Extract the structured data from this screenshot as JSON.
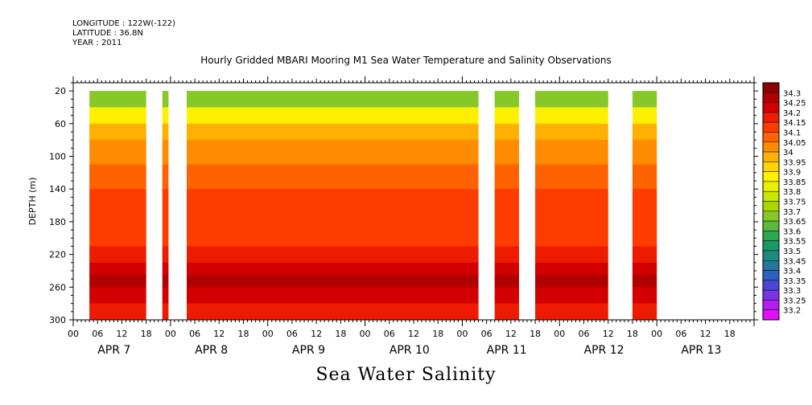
{
  "header": {
    "longitude": "LONGITUDE : 122W(-122)",
    "latitude": "LATITUDE : 36.8N",
    "year": "YEAR : 2011"
  },
  "chart_data": {
    "type": "heatmap",
    "title": "Hourly Gridded MBARI Mooring M1 Sea Water Temperature and Salinity Observations",
    "caption": "Sea Water Salinity",
    "ylabel": "DEPTH (m)",
    "y_reversed": true,
    "ylim": [
      300,
      10
    ],
    "yticks": [
      20,
      60,
      100,
      140,
      180,
      220,
      260,
      300
    ],
    "xlim_hours": [
      0,
      168
    ],
    "hour_ticks": [
      "00",
      "06",
      "12",
      "18",
      "00",
      "06",
      "12",
      "18",
      "00",
      "06",
      "12",
      "18",
      "00",
      "06",
      "12",
      "18",
      "00",
      "06",
      "12",
      "18",
      "00",
      "06",
      "12",
      "18",
      "00",
      "06",
      "12",
      "18"
    ],
    "day_labels": [
      "APR  7",
      "APR  8",
      "APR  9",
      "APR 10",
      "APR 11",
      "APR 12",
      "APR 13"
    ],
    "data_segments_hours": [
      [
        4,
        18
      ],
      [
        22,
        23.5
      ],
      [
        28,
        100
      ],
      [
        104,
        110
      ],
      [
        114,
        132
      ],
      [
        138,
        144
      ]
    ],
    "depth_layers": [
      {
        "depth": [
          20,
          40
        ],
        "salinity": 33.65
      },
      {
        "depth": [
          40,
          60
        ],
        "salinity": 33.85
      },
      {
        "depth": [
          60,
          80
        ],
        "salinity": 33.95
      },
      {
        "depth": [
          80,
          110
        ],
        "salinity": 34.0
      },
      {
        "depth": [
          110,
          140
        ],
        "salinity": 34.05
      },
      {
        "depth": [
          140,
          210
        ],
        "salinity": 34.1
      },
      {
        "depth": [
          210,
          230
        ],
        "salinity": 34.15
      },
      {
        "depth": [
          230,
          245
        ],
        "salinity": 34.2
      },
      {
        "depth": [
          245,
          260
        ],
        "salinity": 34.25
      },
      {
        "depth": [
          260,
          280
        ],
        "salinity": 34.2
      },
      {
        "depth": [
          280,
          300
        ],
        "salinity": 34.15
      }
    ],
    "colorbar": {
      "levels": [
        "34.3",
        "34.25",
        "34.2",
        "34.15",
        "34.1",
        "34.05",
        "34",
        "33.95",
        "33.9",
        "33.85",
        "33.8",
        "33.75",
        "33.7",
        "33.65",
        "33.6",
        "33.55",
        "33.5",
        "33.45",
        "33.4",
        "33.35",
        "33.3",
        "33.25",
        "33.2"
      ],
      "colors": [
        "#8b0000",
        "#b00000",
        "#d30000",
        "#ee1c00",
        "#ff3c00",
        "#ff6200",
        "#ff8c00",
        "#ffb000",
        "#ffd400",
        "#fff000",
        "#e6f000",
        "#c8e600",
        "#a8d800",
        "#86c82a",
        "#5cb83a",
        "#2ea84e",
        "#179a66",
        "#1d8a80",
        "#25779c",
        "#2f5fc0",
        "#4a46d8",
        "#7a34e6",
        "#b41ef0",
        "#e010f8"
      ]
    }
  }
}
